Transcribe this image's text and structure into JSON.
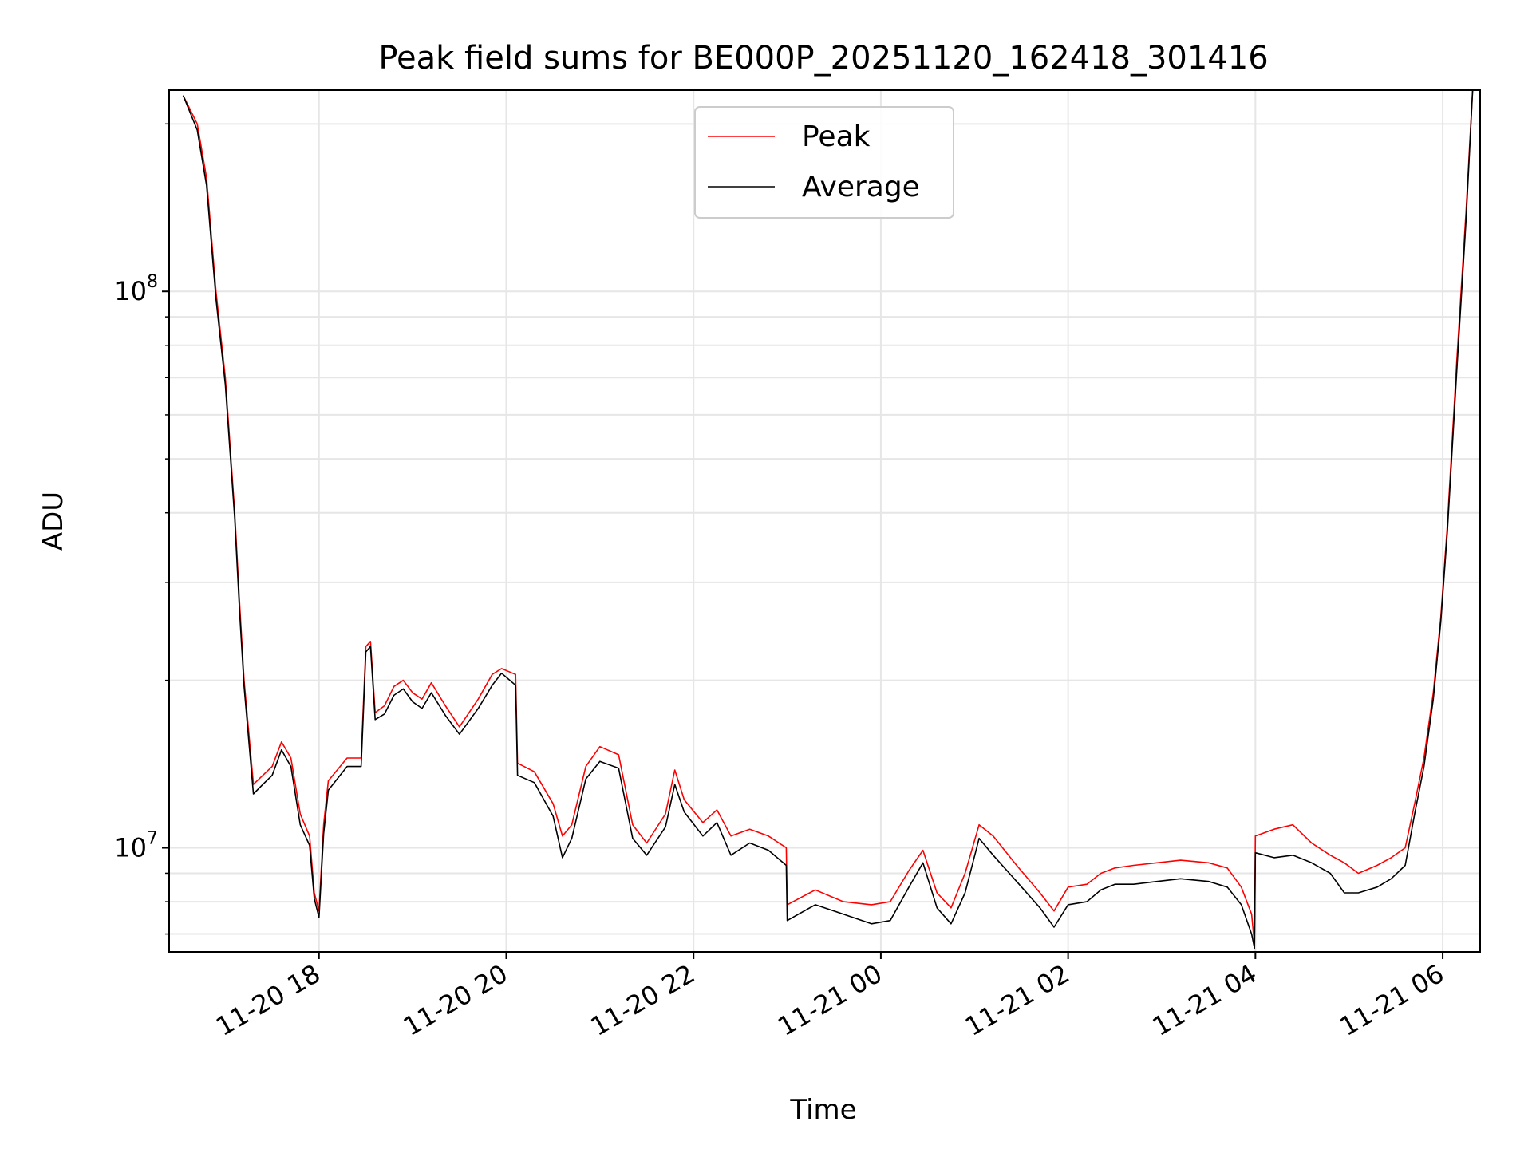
{
  "chart_data": {
    "type": "line",
    "title": "Peak field sums for BE000P_20251120_162418_301416",
    "xlabel": "Time",
    "ylabel": "ADU",
    "y_scale": "log",
    "ylim": [
      6500000,
      230000000
    ],
    "xlim_hours": [
      16.4,
      30.4
    ],
    "x_ticks": [
      {
        "hour": 18,
        "label": "11-20 18"
      },
      {
        "hour": 20,
        "label": "11-20 20"
      },
      {
        "hour": 22,
        "label": "11-20 22"
      },
      {
        "hour": 24,
        "label": "11-21 00"
      },
      {
        "hour": 26,
        "label": "11-21 02"
      },
      {
        "hour": 28,
        "label": "11-21 04"
      },
      {
        "hour": 30,
        "label": "11-21 06"
      }
    ],
    "y_major_ticks": [
      {
        "value": 10000000,
        "base": "10",
        "exp": "7"
      },
      {
        "value": 100000000,
        "base": "10",
        "exp": "8"
      }
    ],
    "y_minor_ticks": [
      7000000,
      8000000,
      9000000,
      20000000,
      30000000,
      40000000,
      50000000,
      60000000,
      70000000,
      80000000,
      90000000,
      200000000
    ],
    "grid": true,
    "legend_position": "upper center",
    "series": [
      {
        "name": "Peak",
        "color": "#ff0000",
        "x_hours": [
          16.55,
          16.7,
          16.8,
          16.9,
          17.0,
          17.1,
          17.15,
          17.2,
          17.3,
          17.4,
          17.5,
          17.6,
          17.7,
          17.8,
          17.9,
          17.95,
          18.0,
          18.05,
          18.1,
          18.3,
          18.45,
          18.5,
          18.55,
          18.6,
          18.7,
          18.8,
          18.9,
          19.0,
          19.1,
          19.2,
          19.35,
          19.5,
          19.7,
          19.85,
          19.95,
          20.1,
          20.12,
          20.3,
          20.5,
          20.6,
          20.7,
          20.85,
          21.0,
          21.2,
          21.35,
          21.5,
          21.7,
          21.8,
          21.9,
          22.1,
          22.25,
          22.4,
          22.6,
          22.8,
          22.99,
          23.0,
          23.3,
          23.6,
          23.9,
          24.1,
          24.3,
          24.45,
          24.6,
          24.75,
          24.9,
          25.05,
          25.2,
          25.45,
          25.7,
          25.85,
          26.0,
          26.2,
          26.35,
          26.5,
          26.7,
          26.95,
          27.2,
          27.5,
          27.7,
          27.85,
          27.96,
          27.99,
          28.0,
          28.2,
          28.4,
          28.6,
          28.8,
          28.95,
          29.1,
          29.3,
          29.45,
          29.6,
          29.7,
          29.8,
          29.9,
          29.98,
          30.05,
          30.15,
          30.25,
          30.32
        ],
        "values": [
          225000000,
          200000000,
          160000000,
          100000000,
          70000000,
          40000000,
          28000000,
          20000000,
          13000000,
          13500000,
          14000000,
          15500000,
          14500000,
          11500000,
          10500000,
          8300000,
          7700000,
          11000000,
          13200000,
          14500000,
          14500000,
          23000000,
          23500000,
          17500000,
          18000000,
          19500000,
          20000000,
          19000000,
          18500000,
          19800000,
          18000000,
          16500000,
          18500000,
          20500000,
          21000000,
          20500000,
          14200000,
          13700000,
          12000000,
          10500000,
          11000000,
          14000000,
          15200000,
          14700000,
          11000000,
          10200000,
          11500000,
          13800000,
          12200000,
          11100000,
          11700000,
          10500000,
          10800000,
          10500000,
          10000000,
          7900000,
          8400000,
          8000000,
          7900000,
          8000000,
          9100000,
          9900000,
          8300000,
          7800000,
          9000000,
          11000000,
          10500000,
          9300000,
          8300000,
          7700000,
          8500000,
          8600000,
          9000000,
          9200000,
          9300000,
          9400000,
          9500000,
          9400000,
          9200000,
          8500000,
          7600000,
          6700000,
          10500000,
          10800000,
          11000000,
          10200000,
          9700000,
          9400000,
          9000000,
          9300000,
          9600000,
          10000000,
          12000000,
          14500000,
          19000000,
          26000000,
          38000000,
          75000000,
          140000000,
          230000000
        ]
      },
      {
        "name": "Average",
        "color": "#000000",
        "x_hours": [
          16.55,
          16.7,
          16.8,
          16.9,
          17.0,
          17.1,
          17.15,
          17.2,
          17.3,
          17.4,
          17.5,
          17.6,
          17.7,
          17.8,
          17.9,
          17.95,
          18.0,
          18.05,
          18.1,
          18.3,
          18.45,
          18.5,
          18.55,
          18.6,
          18.7,
          18.8,
          18.9,
          19.0,
          19.1,
          19.2,
          19.35,
          19.5,
          19.7,
          19.85,
          19.95,
          20.1,
          20.12,
          20.3,
          20.5,
          20.6,
          20.7,
          20.85,
          21.0,
          21.2,
          21.35,
          21.5,
          21.7,
          21.8,
          21.9,
          22.1,
          22.25,
          22.4,
          22.6,
          22.8,
          22.99,
          23.0,
          23.3,
          23.6,
          23.9,
          24.1,
          24.3,
          24.45,
          24.6,
          24.75,
          24.9,
          25.05,
          25.2,
          25.45,
          25.7,
          25.85,
          26.0,
          26.2,
          26.35,
          26.5,
          26.7,
          26.95,
          27.2,
          27.5,
          27.7,
          27.85,
          27.96,
          27.99,
          28.0,
          28.2,
          28.4,
          28.6,
          28.8,
          28.95,
          29.1,
          29.3,
          29.45,
          29.6,
          29.7,
          29.8,
          29.9,
          29.98,
          30.05,
          30.15,
          30.25,
          30.32
        ],
        "values": [
          225000000,
          195000000,
          155000000,
          97000000,
          68000000,
          39000000,
          27000000,
          19500000,
          12500000,
          13000000,
          13500000,
          15000000,
          14000000,
          11000000,
          10100000,
          8100000,
          7500000,
          10600000,
          12700000,
          14000000,
          14000000,
          22500000,
          23000000,
          17000000,
          17400000,
          18800000,
          19300000,
          18300000,
          17800000,
          19000000,
          17300000,
          16000000,
          17800000,
          19600000,
          20600000,
          19600000,
          13500000,
          13100000,
          11400000,
          9600000,
          10400000,
          13300000,
          14300000,
          13900000,
          10400000,
          9700000,
          10900000,
          13000000,
          11600000,
          10500000,
          11100000,
          9700000,
          10200000,
          9900000,
          9300000,
          7400000,
          7900000,
          7600000,
          7300000,
          7400000,
          8500000,
          9400000,
          7800000,
          7300000,
          8300000,
          10400000,
          9700000,
          8700000,
          7800000,
          7200000,
          7900000,
          8000000,
          8400000,
          8600000,
          8600000,
          8700000,
          8800000,
          8700000,
          8500000,
          7900000,
          7000000,
          6600000,
          9800000,
          9600000,
          9700000,
          9400000,
          9000000,
          8300000,
          8300000,
          8500000,
          8800000,
          9300000,
          11500000,
          14000000,
          18500000,
          25500000,
          37000000,
          72000000,
          135000000,
          230000000
        ]
      }
    ]
  }
}
